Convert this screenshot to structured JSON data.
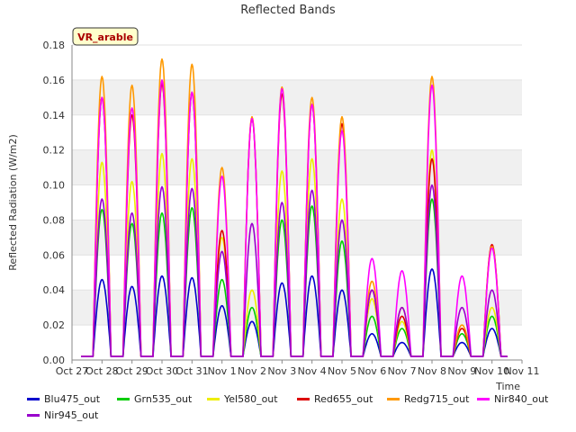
{
  "chart_data": {
    "type": "line",
    "title": "Reflected Bands",
    "xlabel": "Time",
    "ylabel": "Reflected Radiation (W/m2)",
    "ylim": [
      0.0,
      0.18
    ],
    "yticks": [
      "0.00",
      "0.02",
      "0.04",
      "0.06",
      "0.08",
      "0.10",
      "0.12",
      "0.14",
      "0.16",
      "0.18"
    ],
    "xticks": [
      "Oct 27",
      "Oct 28",
      "Oct 29",
      "Oct 30",
      "Oct 31",
      "Nov 1",
      "Nov 2",
      "Nov 3",
      "Nov 4",
      "Nov 5",
      "Nov 6",
      "Nov 7",
      "Nov 8",
      "Nov 9",
      "Nov 10",
      "Nov 11"
    ],
    "grid": "horizontal bands",
    "annotation": "VR_arable",
    "days": [
      "Oct 27",
      "Oct 28",
      "Oct 29",
      "Oct 30",
      "Oct 31",
      "Nov 1",
      "Nov 2",
      "Nov 3",
      "Nov 4",
      "Nov 5",
      "Nov 6",
      "Nov 7",
      "Nov 8",
      "Nov 9",
      "Nov 10"
    ],
    "series": [
      {
        "name": "Blu475_out",
        "color": "#0000cc",
        "daily_peak": [
          null,
          0.046,
          0.042,
          0.048,
          0.047,
          0.031,
          0.022,
          0.044,
          0.048,
          0.04,
          0.015,
          0.01,
          0.052,
          0.01,
          0.018
        ]
      },
      {
        "name": "Grn535_out",
        "color": "#00cc00",
        "daily_peak": [
          null,
          0.086,
          0.078,
          0.084,
          0.087,
          0.046,
          0.03,
          0.08,
          0.088,
          0.068,
          0.025,
          0.018,
          0.092,
          0.015,
          0.025
        ]
      },
      {
        "name": "Yel580_out",
        "color": "#eeee00",
        "daily_peak": [
          null,
          0.113,
          0.102,
          0.118,
          0.115,
          0.07,
          0.04,
          0.108,
          0.115,
          0.092,
          0.035,
          0.022,
          0.12,
          0.018,
          0.03
        ]
      },
      {
        "name": "Red655_out",
        "color": "#dd0000",
        "daily_peak": [
          null,
          0.15,
          0.14,
          0.158,
          0.153,
          0.074,
          0.138,
          0.152,
          0.146,
          0.135,
          0.04,
          0.025,
          0.115,
          0.018,
          0.066
        ]
      },
      {
        "name": "Redg715_out",
        "color": "#ff9900",
        "daily_peak": [
          null,
          0.162,
          0.157,
          0.172,
          0.169,
          0.11,
          0.139,
          0.156,
          0.15,
          0.139,
          0.045,
          0.03,
          0.162,
          0.02,
          0.065
        ]
      },
      {
        "name": "Nir840_out",
        "color": "#ff00ff",
        "daily_peak": [
          null,
          0.15,
          0.144,
          0.16,
          0.153,
          0.105,
          0.138,
          0.155,
          0.146,
          0.131,
          0.058,
          0.051,
          0.157,
          0.048,
          0.064
        ]
      },
      {
        "name": "Nir945_out",
        "color": "#9900cc",
        "daily_peak": [
          null,
          0.092,
          0.084,
          0.099,
          0.098,
          0.062,
          0.078,
          0.09,
          0.097,
          0.08,
          0.04,
          0.03,
          0.1,
          0.03,
          0.04
        ]
      }
    ],
    "baseline": 0.002
  }
}
